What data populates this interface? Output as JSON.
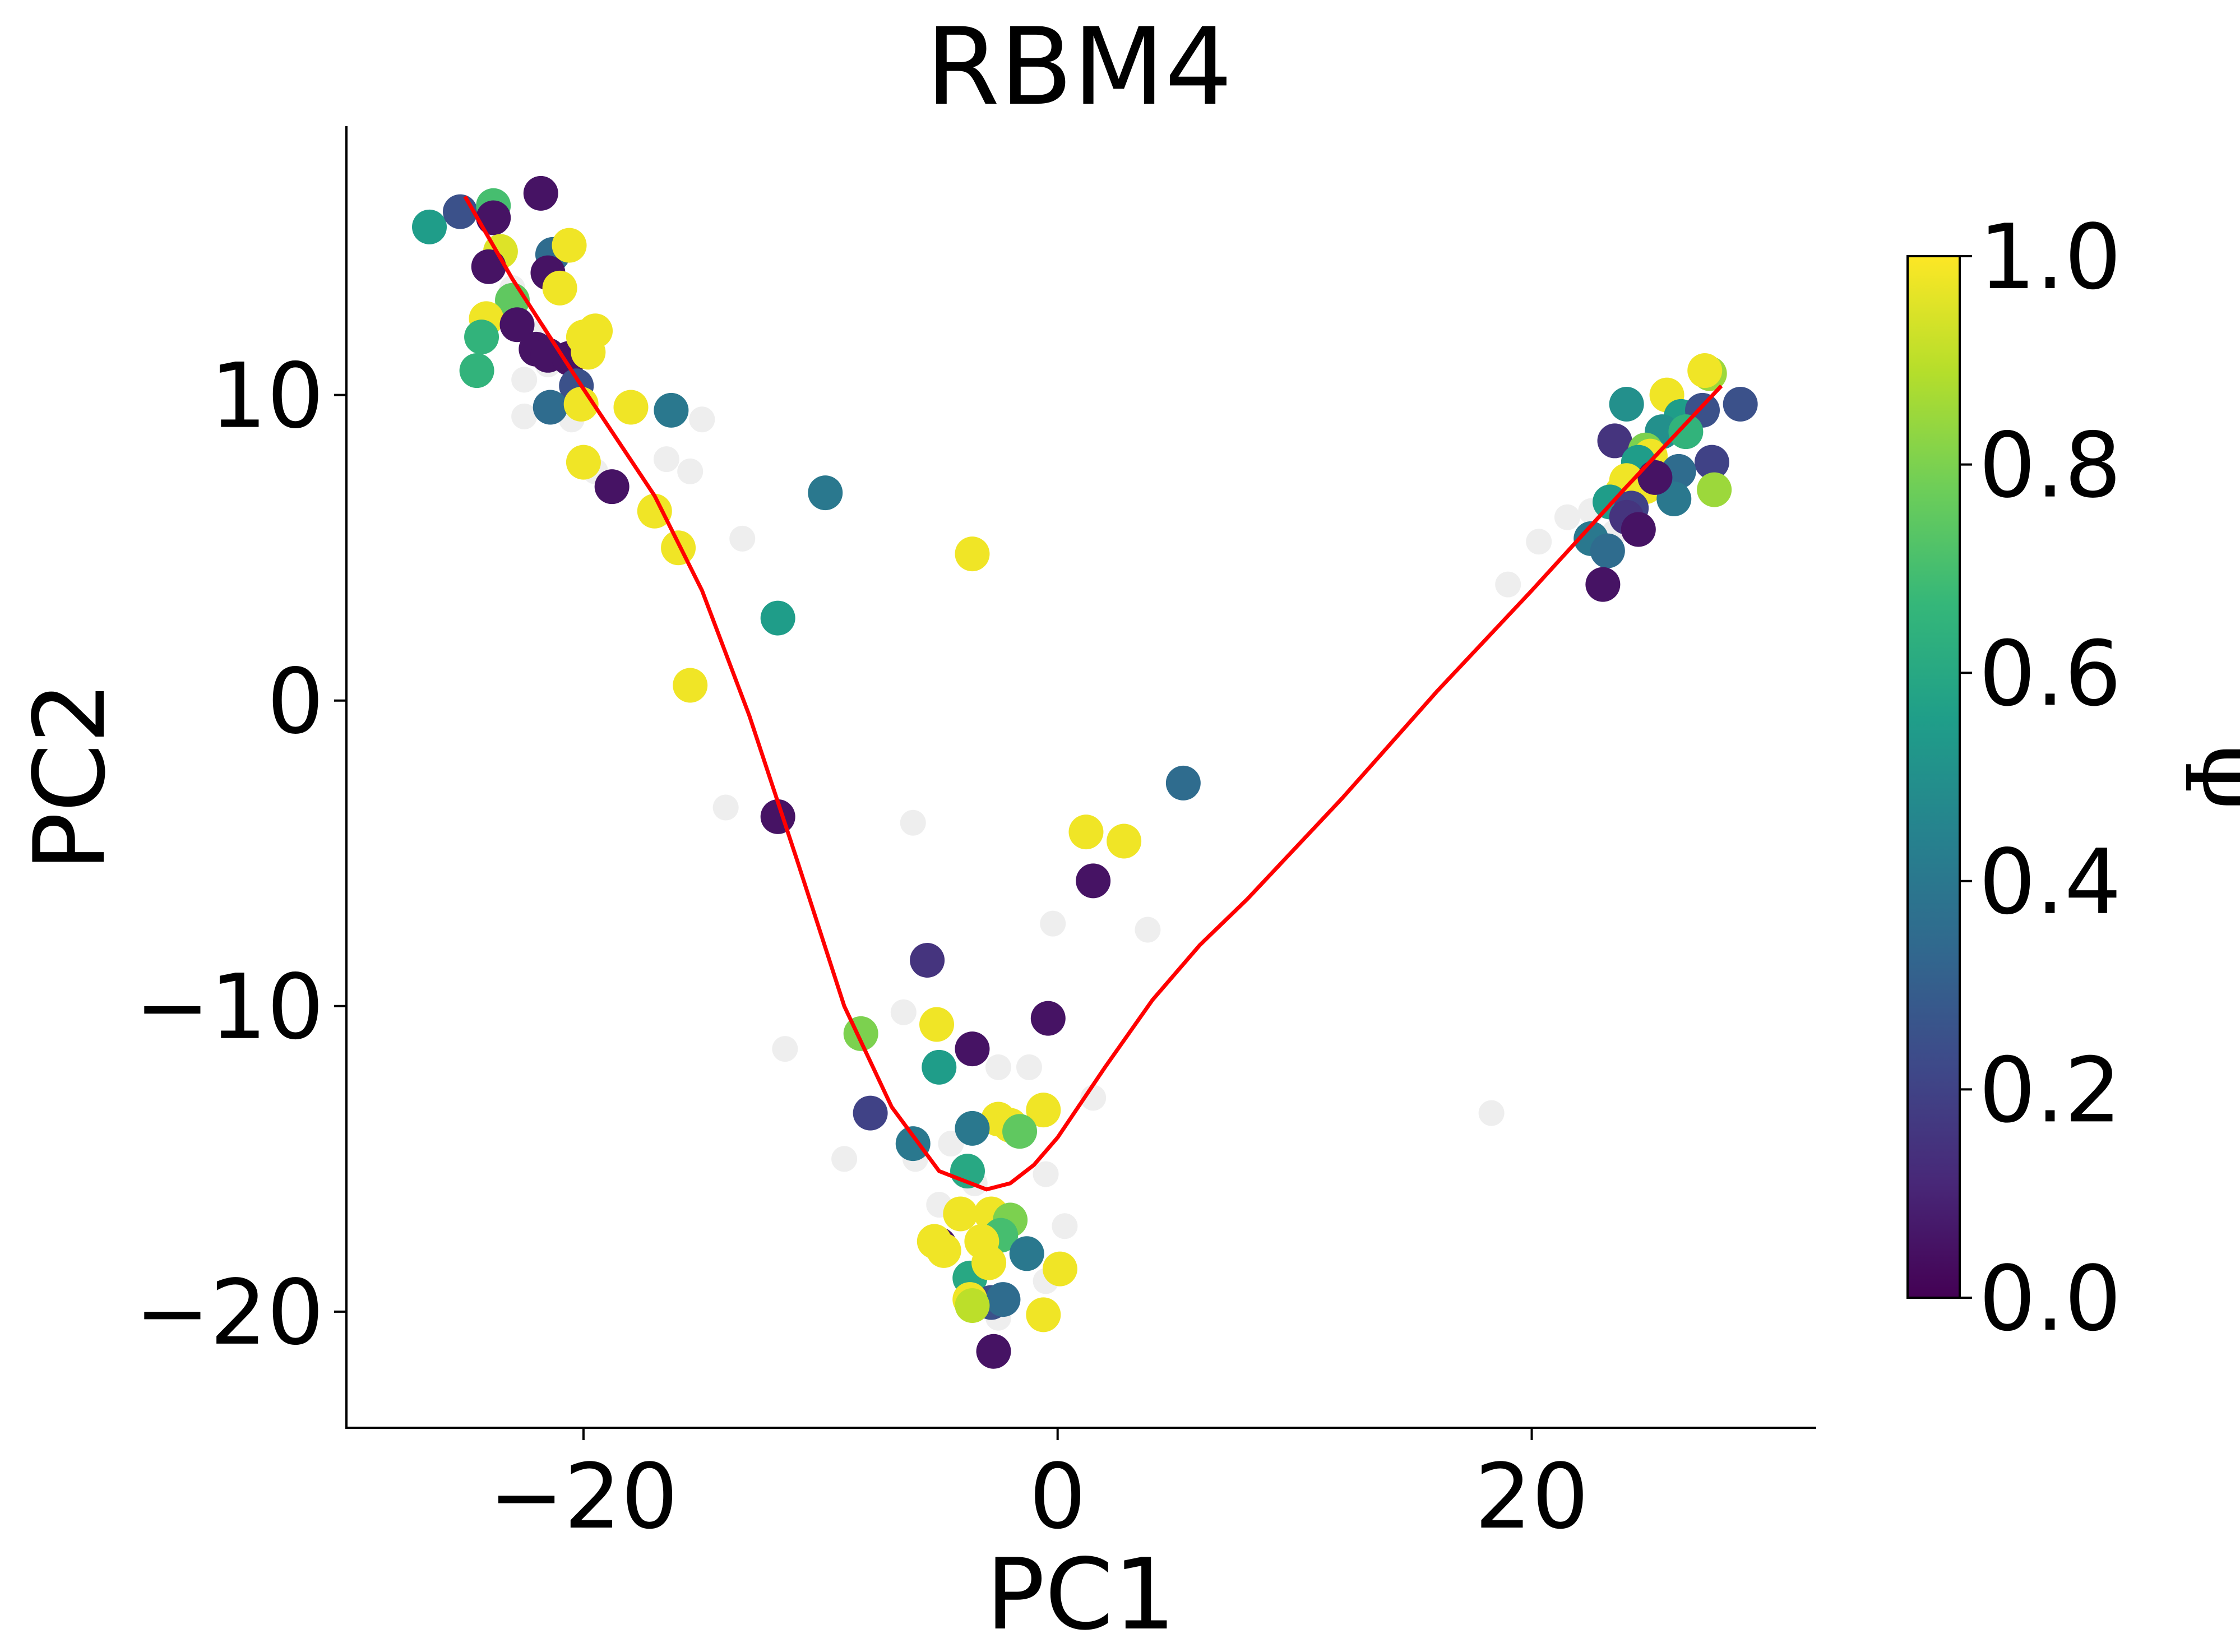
{
  "chart_data": {
    "type": "scatter",
    "title": "RBM4",
    "xlabel": "PC1",
    "ylabel": "PC2",
    "xlim": [
      -30,
      32
    ],
    "ylim": [
      -23.8,
      18.8
    ],
    "xticks": [
      -20,
      0,
      20
    ],
    "yticks": [
      -20,
      -10,
      0,
      10
    ],
    "xtick_labels": [
      "−20",
      "0",
      "20"
    ],
    "ytick_labels": [
      "−20",
      "−10",
      "0",
      "10"
    ],
    "grid": false,
    "colorbar": {
      "label": "Ψ",
      "range": [
        0,
        1
      ],
      "ticks": [
        0.0,
        0.2,
        0.4,
        0.6,
        0.8,
        1.0
      ],
      "tick_labels": [
        "0.0",
        "0.2",
        "0.4",
        "0.6",
        "0.8",
        "1.0"
      ],
      "colormap": "viridis",
      "stops": [
        "#440154",
        "#482878",
        "#3e4989",
        "#31688e",
        "#26828e",
        "#1f9e89",
        "#35b779",
        "#6ece58",
        "#b5de2b",
        "#fde725"
      ]
    },
    "background_points": {
      "color": "#eeeeee",
      "points": [
        [
          -23,
          13.5
        ],
        [
          -22,
          12
        ],
        [
          -21.5,
          11
        ],
        [
          -22.5,
          10.5
        ],
        [
          -20.5,
          9.2
        ],
        [
          -22.5,
          9.3
        ],
        [
          -19.5,
          7.5
        ],
        [
          -16.5,
          7.9
        ],
        [
          -15.5,
          7.5
        ],
        [
          -15,
          9.2
        ],
        [
          -13.3,
          5.3
        ],
        [
          -14,
          -3.5
        ],
        [
          -11.5,
          -11.4
        ],
        [
          -9,
          -15
        ],
        [
          -6.5,
          -10.2
        ],
        [
          -6.1,
          -4
        ],
        [
          -6,
          -15
        ],
        [
          -5,
          -16.5
        ],
        [
          -4.5,
          -14.5
        ],
        [
          -3.5,
          -15.8
        ],
        [
          -2.5,
          -12
        ],
        [
          -1.2,
          -12
        ],
        [
          -0.5,
          -15.5
        ],
        [
          0.3,
          -17.2
        ],
        [
          -0.2,
          -7.3
        ],
        [
          1.5,
          -13
        ],
        [
          3.8,
          -7.5
        ],
        [
          -0.5,
          -19
        ],
        [
          -2.5,
          -20.2
        ],
        [
          19,
          3.8
        ],
        [
          20.3,
          5.2
        ],
        [
          21.5,
          6
        ],
        [
          22.5,
          6.2
        ],
        [
          23.5,
          5.5
        ],
        [
          18.3,
          -13.5
        ]
      ]
    },
    "points": [
      [
        -26.5,
        15.5,
        0.55
      ],
      [
        -25.2,
        16.0,
        0.25
      ],
      [
        -23.8,
        16.2,
        0.7
      ],
      [
        -21.8,
        16.6,
        0.05
      ],
      [
        -23.8,
        15.8,
        0.05
      ],
      [
        -23.5,
        14.7,
        0.95
      ],
      [
        -24.0,
        14.2,
        0.05
      ],
      [
        -21.3,
        14.6,
        0.35
      ],
      [
        -20.6,
        14.9,
        0.98
      ],
      [
        -21.5,
        14.0,
        0.05
      ],
      [
        -21.0,
        13.5,
        0.98
      ],
      [
        -23.0,
        13.1,
        0.75
      ],
      [
        -24.1,
        12.5,
        0.98
      ],
      [
        -24.3,
        11.9,
        0.65
      ],
      [
        -22.8,
        12.3,
        0.05
      ],
      [
        -22.0,
        11.5,
        0.05
      ],
      [
        -21.5,
        11.3,
        0.05
      ],
      [
        -20.6,
        11.2,
        0.05
      ],
      [
        -20.0,
        11.9,
        0.98
      ],
      [
        -19.5,
        12.1,
        0.98
      ],
      [
        -19.8,
        11.4,
        0.98
      ],
      [
        -24.5,
        10.8,
        0.65
      ],
      [
        -20.3,
        10.3,
        0.25
      ],
      [
        -21.4,
        9.6,
        0.35
      ],
      [
        -20.1,
        9.7,
        0.98
      ],
      [
        -18.0,
        9.6,
        0.98
      ],
      [
        -16.3,
        9.5,
        0.4
      ],
      [
        -20.0,
        7.8,
        0.98
      ],
      [
        -18.8,
        7.0,
        0.05
      ],
      [
        -17.0,
        6.2,
        0.98
      ],
      [
        -16.0,
        5.0,
        0.98
      ],
      [
        -15.5,
        0.5,
        0.98
      ],
      [
        -9.8,
        6.8,
        0.4
      ],
      [
        -11.8,
        2.7,
        0.55
      ],
      [
        -3.6,
        4.8,
        0.98
      ],
      [
        -11.8,
        -3.8,
        0.05
      ],
      [
        5.3,
        -2.7,
        0.35
      ],
      [
        1.2,
        -4.3,
        0.98
      ],
      [
        2.8,
        -4.6,
        0.98
      ],
      [
        1.5,
        -5.9,
        0.05
      ],
      [
        -5.5,
        -8.5,
        0.15
      ],
      [
        -0.4,
        -10.4,
        0.05
      ],
      [
        -8.3,
        -10.9,
        0.8
      ],
      [
        -5.1,
        -10.6,
        0.98
      ],
      [
        -5.0,
        -12.0,
        0.55
      ],
      [
        -3.6,
        -11.4,
        0.05
      ],
      [
        -7.9,
        -13.5,
        0.2
      ],
      [
        -6.1,
        -14.5,
        0.4
      ],
      [
        -2.5,
        -13.7,
        0.98
      ],
      [
        -0.6,
        -13.4,
        0.98
      ],
      [
        -3.6,
        -14.0,
        0.4
      ],
      [
        -2.0,
        -13.9,
        0.98
      ],
      [
        -1.6,
        -14.1,
        0.75
      ],
      [
        -3.8,
        -15.4,
        0.6
      ],
      [
        -4.1,
        -16.8,
        0.98
      ],
      [
        -2.8,
        -16.8,
        0.98
      ],
      [
        -2.0,
        -17.0,
        0.8
      ],
      [
        -2.4,
        -17.5,
        0.7
      ],
      [
        -5.0,
        -17.8,
        0.05
      ],
      [
        -4.8,
        -18.0,
        0.98
      ],
      [
        -3.2,
        -17.7,
        0.98
      ],
      [
        -1.3,
        -18.1,
        0.4
      ],
      [
        0.1,
        -18.6,
        0.98
      ],
      [
        -3.7,
        -18.9,
        0.6
      ],
      [
        -2.9,
        -18.4,
        0.98
      ],
      [
        -2.8,
        -19.7,
        0.25
      ],
      [
        -2.3,
        -19.6,
        0.35
      ],
      [
        -3.7,
        -19.6,
        0.98
      ],
      [
        -3.6,
        -19.8,
        0.9
      ],
      [
        -0.6,
        -20.1,
        0.98
      ],
      [
        -2.7,
        -21.3,
        0.05
      ],
      [
        -5.2,
        -17.7,
        0.98
      ],
      [
        23.5,
        8.5,
        0.15
      ],
      [
        24.0,
        9.7,
        0.5
      ],
      [
        25.7,
        10.0,
        0.98
      ],
      [
        27.5,
        10.7,
        0.85
      ],
      [
        27.3,
        10.8,
        0.98
      ],
      [
        28.8,
        9.7,
        0.25
      ],
      [
        26.3,
        9.3,
        0.55
      ],
      [
        27.2,
        9.5,
        0.25
      ],
      [
        25.5,
        8.8,
        0.5
      ],
      [
        26.5,
        8.8,
        0.65
      ],
      [
        24.8,
        8.2,
        0.8
      ],
      [
        25.0,
        8.0,
        0.98
      ],
      [
        24.5,
        7.8,
        0.55
      ],
      [
        27.6,
        7.8,
        0.2
      ],
      [
        26.2,
        7.5,
        0.35
      ],
      [
        24.0,
        7.2,
        0.98
      ],
      [
        23.8,
        6.8,
        0.98
      ],
      [
        24.8,
        7.0,
        0.98
      ],
      [
        23.3,
        6.5,
        0.55
      ],
      [
        24.2,
        6.3,
        0.2
      ],
      [
        26.0,
        6.6,
        0.4
      ],
      [
        27.7,
        6.9,
        0.85
      ],
      [
        25.2,
        7.3,
        0.05
      ],
      [
        24.0,
        6.0,
        0.15
      ],
      [
        24.5,
        5.6,
        0.05
      ],
      [
        22.5,
        5.3,
        0.4
      ],
      [
        23.2,
        4.9,
        0.35
      ],
      [
        23.0,
        3.8,
        0.05
      ]
    ],
    "trend_line": {
      "color": "#ff0000",
      "x": [
        -25,
        -23,
        -20,
        -17,
        -15,
        -13,
        -11,
        -9,
        -7,
        -5,
        -3,
        -2,
        -1,
        0,
        2,
        4,
        6,
        8,
        12,
        16,
        20,
        24,
        28
      ],
      "y": [
        16.5,
        13.8,
        10.2,
        6.7,
        3.6,
        -0.5,
        -5.2,
        -10.0,
        -13.3,
        -15.4,
        -16.0,
        -15.8,
        -15.2,
        -14.3,
        -12.0,
        -9.8,
        -8.0,
        -6.5,
        -3.2,
        0.3,
        3.6,
        7.0,
        10.3
      ]
    }
  }
}
